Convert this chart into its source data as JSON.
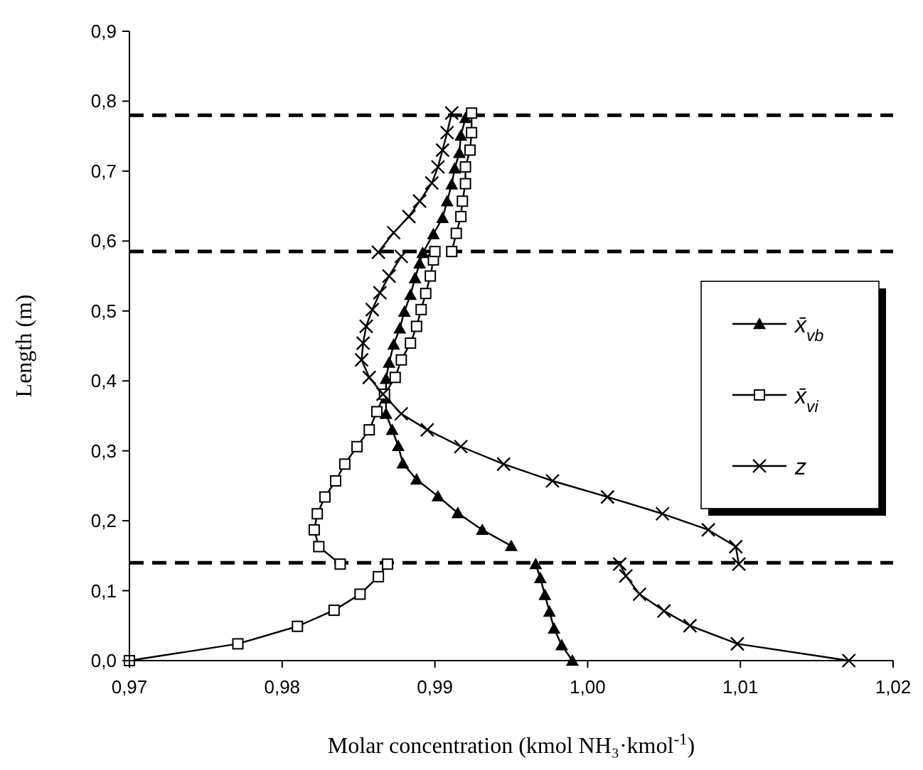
{
  "chart_data": {
    "type": "line",
    "xlabel": "Molar concentration (kmol NH₃·kmol$^{-1}$)",
    "ylabel": "Length (m)",
    "xlim": [
      0.97,
      1.02
    ],
    "xticks": [
      {
        "value": 0.97,
        "label": "0,97"
      },
      {
        "value": 0.98,
        "label": "0,98"
      },
      {
        "value": 0.99,
        "label": "0,99"
      },
      {
        "value": 1.0,
        "label": "1,00"
      },
      {
        "value": 1.01,
        "label": "1,01"
      },
      {
        "value": 1.02,
        "label": "1,02"
      }
    ],
    "ylim": [
      0,
      0.9
    ],
    "yticks": [
      {
        "value": 0,
        "label": "0,0"
      },
      {
        "value": 0.1,
        "label": "0,1"
      },
      {
        "value": 0.2,
        "label": "0,2"
      },
      {
        "value": 0.3,
        "label": "0,3"
      },
      {
        "value": 0.4,
        "label": "0,4"
      },
      {
        "value": 0.5,
        "label": "0,5"
      },
      {
        "value": 0.6,
        "label": "0,6"
      },
      {
        "value": 0.7,
        "label": "0,7"
      },
      {
        "value": 0.8,
        "label": "0,8"
      },
      {
        "value": 0.9,
        "label": "0,9"
      }
    ],
    "grid": false,
    "legend": "right",
    "line_style": "solid",
    "ref_lines": [
      {
        "axis": "y",
        "value": 0.14,
        "color": "#000000",
        "line_style": "dashed"
      },
      {
        "axis": "y",
        "value": 0.585,
        "color": "#000000",
        "line_style": "dashed"
      },
      {
        "axis": "y",
        "value": 0.78,
        "color": "#000000",
        "line_style": "dashed"
      }
    ],
    "series": [
      {
        "name": "x̄$_{vb}$",
        "color": "#000000",
        "marker": "triangle",
        "x": [
          0.999,
          0.9983,
          0.9978,
          0.9975,
          0.9972,
          0.9969,
          0.9966,
          null,
          0.995,
          0.9931,
          0.9915,
          0.9902,
          0.9888,
          0.9879,
          0.9876,
          0.9872,
          0.9868,
          0.9868,
          0.9868,
          0.987,
          0.9873,
          0.9877,
          0.988,
          0.9884,
          0.9887,
          0.989,
          0.9892,
          0.9899,
          0.9905,
          0.9908,
          0.9911,
          0.9913,
          0.9916,
          0.9917,
          0.992
        ],
        "values": [
          0,
          0.022,
          0.046,
          0.07,
          0.094,
          0.118,
          0.138,
          null,
          0.164,
          0.187,
          0.211,
          0.235,
          0.259,
          0.282,
          0.307,
          0.33,
          0.353,
          0.375,
          0.403,
          0.426,
          0.452,
          0.475,
          0.499,
          0.523,
          0.547,
          0.568,
          0.583,
          0.61,
          0.633,
          0.657,
          0.681,
          0.704,
          0.726,
          0.751,
          0.776
        ]
      },
      {
        "name": "x̄$_{vi}$",
        "color": "#000000",
        "marker": "square",
        "x": [
          0.97,
          0.9771,
          0.981,
          0.9834,
          0.9851,
          0.9863,
          0.9869,
          null,
          0.9838,
          0.9824,
          0.9821,
          0.9823,
          0.9828,
          0.9835,
          0.9841,
          0.9849,
          0.9857,
          0.9862,
          0.9867,
          0.9874,
          0.9878,
          0.9884,
          0.9888,
          0.9891,
          0.9894,
          0.9897,
          0.9899,
          0.99,
          null,
          0.9911,
          0.9914,
          0.9917,
          0.9918,
          0.992,
          0.992,
          0.9923,
          0.9924,
          0.9924
        ],
        "values": [
          0,
          0.024,
          0.049,
          0.072,
          0.095,
          0.12,
          0.138,
          null,
          0.138,
          0.163,
          0.187,
          0.21,
          0.234,
          0.257,
          0.281,
          0.306,
          0.33,
          0.356,
          0.381,
          0.405,
          0.43,
          0.454,
          0.478,
          0.502,
          0.525,
          0.55,
          0.573,
          0.585,
          null,
          0.585,
          0.611,
          0.635,
          0.657,
          0.682,
          0.706,
          0.73,
          0.755,
          0.783
        ]
      },
      {
        "name": "z",
        "color": "#000000",
        "marker": "cross",
        "x": [
          1.0171,
          1.0098,
          1.0067,
          1.005,
          1.0034,
          1.0025,
          1.0021,
          null,
          1.0099,
          1.0097,
          1.0079,
          1.0049,
          1.0013,
          0.9977,
          0.9945,
          0.9917,
          0.9895,
          0.9878,
          0.9866,
          0.9857,
          0.9852,
          0.9853,
          0.9855,
          0.9859,
          0.9864,
          0.987,
          0.9878,
          null,
          0.9863,
          0.9873,
          0.9883,
          0.989,
          0.9898,
          0.9902,
          0.9905,
          0.9908,
          0.9911
        ],
        "values": [
          0,
          0.024,
          0.05,
          0.071,
          0.095,
          0.121,
          0.138,
          null,
          0.138,
          0.163,
          0.187,
          0.21,
          0.234,
          0.257,
          0.281,
          0.306,
          0.33,
          0.353,
          0.381,
          0.405,
          0.43,
          0.454,
          0.478,
          0.502,
          0.526,
          0.55,
          0.578,
          null,
          0.584,
          0.612,
          0.635,
          0.657,
          0.683,
          0.706,
          0.73,
          0.755,
          0.783
        ]
      }
    ]
  }
}
